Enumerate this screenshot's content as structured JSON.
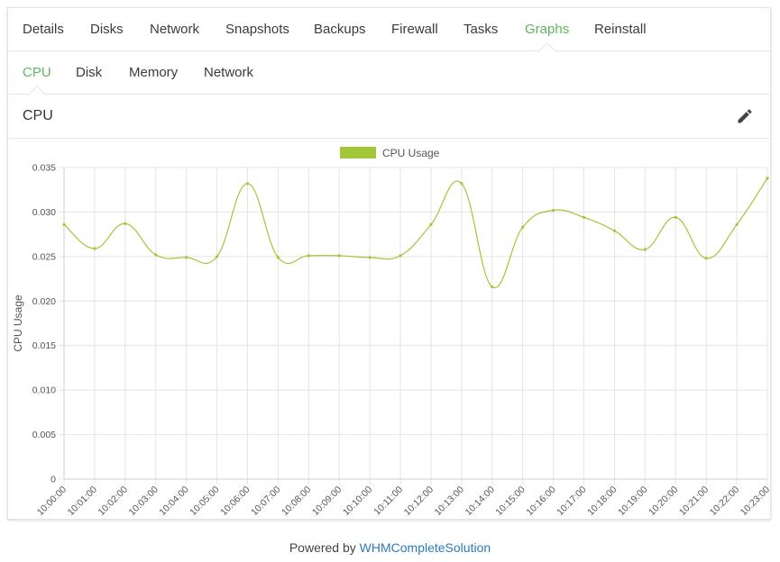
{
  "tabs": [
    {
      "label": "Details",
      "name": "tab-details",
      "active": false
    },
    {
      "label": "Disks",
      "name": "tab-disks",
      "active": false
    },
    {
      "label": "Network",
      "name": "tab-network",
      "active": false
    },
    {
      "label": "Snapshots",
      "name": "tab-snapshots",
      "active": false
    },
    {
      "label": "Backups",
      "name": "tab-backups",
      "active": false
    },
    {
      "label": "Firewall",
      "name": "tab-firewall",
      "active": false
    },
    {
      "label": "Tasks",
      "name": "tab-tasks",
      "active": false
    },
    {
      "label": "Graphs",
      "name": "tab-graphs",
      "active": true
    },
    {
      "label": "Reinstall",
      "name": "tab-reinstall",
      "active": false
    }
  ],
  "subtabs": [
    {
      "label": "CPU",
      "name": "subtab-cpu",
      "active": true
    },
    {
      "label": "Disk",
      "name": "subtab-disk",
      "active": false
    },
    {
      "label": "Memory",
      "name": "subtab-memory",
      "active": false
    },
    {
      "label": "Network",
      "name": "subtab-network",
      "active": false
    }
  ],
  "panel": {
    "title": "CPU",
    "edit_icon": "pencil-icon"
  },
  "colors": {
    "accent": "#5cb85c",
    "series": "#a4c639",
    "link": "#2a7ab8"
  },
  "chart_data": {
    "type": "line",
    "ylabel": "CPU Usage",
    "ylim": [
      0,
      0.035
    ],
    "yticks": [
      "0",
      "0.005",
      "0.010",
      "0.015",
      "0.020",
      "0.025",
      "0.030",
      "0.035"
    ],
    "grid": true,
    "legend": "top-center",
    "categories": [
      "10:00:00",
      "10:01:00",
      "10:02:00",
      "10:03:00",
      "10:04:00",
      "10:05:00",
      "10:06:00",
      "10:07:00",
      "10:08:00",
      "10:09:00",
      "10:10:00",
      "10:11:00",
      "10:12:00",
      "10:13:00",
      "10:14:00",
      "10:15:00",
      "10:16:00",
      "10:17:00",
      "10:18:00",
      "10:19:00",
      "10:20:00",
      "10:21:00",
      "10:22:00",
      "10:23:00"
    ],
    "series": [
      {
        "name": "CPU Usage",
        "values": [
          0.0286,
          0.0259,
          0.0287,
          0.0252,
          0.0249,
          0.025,
          0.0332,
          0.0249,
          0.0251,
          0.0251,
          0.0249,
          0.0251,
          0.0286,
          0.0332,
          0.0216,
          0.0283,
          0.0302,
          0.0294,
          0.0279,
          0.0258,
          0.0294,
          0.0248,
          0.0286,
          0.0338
        ]
      }
    ]
  },
  "footer": {
    "prefix": "Powered by ",
    "link": "WHMCompleteSolution"
  }
}
